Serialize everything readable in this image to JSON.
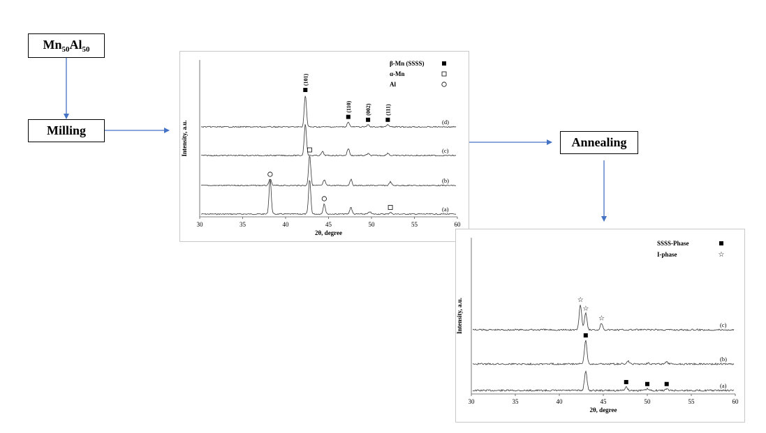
{
  "flowchart": {
    "material": {
      "base1": "Mn",
      "sub1": "50",
      "base2": "Al",
      "sub2": "50"
    },
    "steps": [
      "Milling",
      "Annealing"
    ]
  },
  "chart_data": [
    {
      "type": "line",
      "xlabel": "2θ, degree",
      "ylabel": "Intensity, a.u.",
      "xlim": [
        30,
        60
      ],
      "x_ticks": [
        30,
        35,
        40,
        45,
        50,
        55,
        60
      ],
      "legend": [
        {
          "label": "β-Mn (SSSS)",
          "marker": "filled-square"
        },
        {
          "label": "α-Mn",
          "marker": "open-square"
        },
        {
          "label": "Al",
          "marker": "open-circle"
        }
      ],
      "series": [
        {
          "name": "(a)",
          "peaks": [
            {
              "x": 38.2,
              "h": 1.0
            },
            {
              "x": 42.8,
              "h": 1.0
            },
            {
              "x": 44.5,
              "h": 0.3
            },
            {
              "x": 47.6,
              "h": 0.2
            },
            {
              "x": 49.8,
              "h": 0.07
            },
            {
              "x": 52.2,
              "h": 0.05
            }
          ]
        },
        {
          "name": "(b)",
          "peaks": [
            {
              "x": 38.2,
              "h": 0.22
            },
            {
              "x": 42.8,
              "h": 1.0
            },
            {
              "x": 44.5,
              "h": 0.18
            },
            {
              "x": 47.6,
              "h": 0.2
            },
            {
              "x": 52.2,
              "h": 0.12
            }
          ]
        },
        {
          "name": "(c)",
          "peaks": [
            {
              "x": 42.3,
              "h": 1.0
            },
            {
              "x": 44.3,
              "h": 0.12
            },
            {
              "x": 47.3,
              "h": 0.22
            },
            {
              "x": 49.6,
              "h": 0.06
            },
            {
              "x": 51.9,
              "h": 0.08
            }
          ]
        },
        {
          "name": "(d)",
          "peaks": [
            {
              "x": 42.3,
              "h": 1.0
            },
            {
              "x": 47.3,
              "h": 0.16
            },
            {
              "x": 49.6,
              "h": 0.07
            },
            {
              "x": 51.9,
              "h": 0.07
            }
          ]
        }
      ],
      "annotations": [
        {
          "label": "(101)",
          "x": 42.3,
          "series": "(d)",
          "marker": "filled-square"
        },
        {
          "label": "(110)",
          "x": 47.3,
          "series": "(d)",
          "marker": "filled-square"
        },
        {
          "label": "(002)",
          "x": 49.6,
          "series": "(d)",
          "marker": "filled-square"
        },
        {
          "label": "(111)",
          "x": 51.9,
          "series": "(d)",
          "marker": "filled-square"
        },
        {
          "marker": "open-circle",
          "x": 38.2,
          "series": "(a)"
        },
        {
          "marker": "open-circle",
          "x": 44.5,
          "series": "(a)"
        },
        {
          "marker": "open-square",
          "x": 52.2,
          "series": "(a)"
        },
        {
          "marker": "open-square",
          "x": 42.8,
          "series": "(b)"
        }
      ]
    },
    {
      "type": "line",
      "xlabel": "2θ, degree",
      "ylabel": "Intensity, a.u.",
      "xlim": [
        30,
        60
      ],
      "x_ticks": [
        30,
        35,
        40,
        45,
        50,
        55,
        60
      ],
      "legend": [
        {
          "label": "SSSS-Phase",
          "marker": "filled-square"
        },
        {
          "label": "I-phase",
          "marker": "star"
        }
      ],
      "series": [
        {
          "name": "(a)",
          "peaks": [
            {
              "x": 43.0,
              "h": 1.0
            },
            {
              "x": 47.6,
              "h": 0.18
            },
            {
              "x": 50.0,
              "h": 0.08
            },
            {
              "x": 52.2,
              "h": 0.08
            }
          ]
        },
        {
          "name": "(b)",
          "peaks": [
            {
              "x": 43.0,
              "h": 1.0
            },
            {
              "x": 47.8,
              "h": 0.12
            },
            {
              "x": 50.1,
              "h": 0.05
            },
            {
              "x": 52.2,
              "h": 0.08
            }
          ]
        },
        {
          "name": "(c)",
          "peaks": [
            {
              "x": 42.4,
              "h": 1.0
            },
            {
              "x": 43.0,
              "h": 0.65
            },
            {
              "x": 44.8,
              "h": 0.27
            }
          ]
        }
      ],
      "annotations": [
        {
          "marker": "filled-square",
          "x": 43.0,
          "series": "(b)"
        },
        {
          "marker": "filled-square",
          "x": 47.6,
          "series": "(a)"
        },
        {
          "marker": "filled-square",
          "x": 50.0,
          "series": "(a)"
        },
        {
          "marker": "filled-square",
          "x": 52.2,
          "series": "(a)"
        },
        {
          "marker": "star",
          "x": 42.4,
          "series": "(c)"
        },
        {
          "marker": "star",
          "x": 43.0,
          "series": "(c)"
        },
        {
          "marker": "star",
          "x": 44.8,
          "series": "(c)"
        }
      ]
    }
  ]
}
